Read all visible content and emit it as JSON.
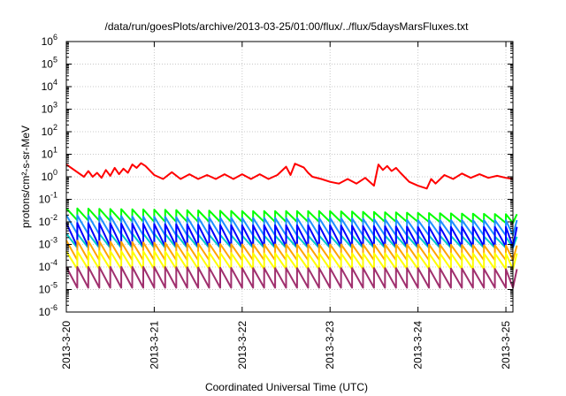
{
  "chart_data": {
    "type": "line",
    "title": "/data/run/goesPlots/archive/2013-03-25/01:00/flux/../flux/5daysMarsFluxes.txt",
    "xlabel": "Coordinated Universal Time (UTC)",
    "ylabel": "protons/cm²-s-sr-MeV",
    "yscale": "log",
    "ylim": [
      1e-06,
      1000000.0
    ],
    "xlim": [
      0,
      5.08
    ],
    "grid": true,
    "x_tick_labels": [
      "2013-3-20",
      "2013-3-21",
      "2013-3-22",
      "2013-3-23",
      "2013-3-24",
      "2013-3-25"
    ],
    "x_tick_positions_days": [
      0,
      1,
      2,
      3,
      4,
      5
    ],
    "y_tick_labels": [
      {
        "base": "10",
        "exp": "-6"
      },
      {
        "base": "10",
        "exp": "-5"
      },
      {
        "base": "10",
        "exp": "-4"
      },
      {
        "base": "10",
        "exp": "-3"
      },
      {
        "base": "10",
        "exp": "-2"
      },
      {
        "base": "10",
        "exp": "-1"
      },
      {
        "base": "10",
        "exp": "0"
      },
      {
        "base": "10",
        "exp": "1"
      },
      {
        "base": "10",
        "exp": "2"
      },
      {
        "base": "10",
        "exp": "3"
      },
      {
        "base": "10",
        "exp": "4"
      },
      {
        "base": "10",
        "exp": "5"
      },
      {
        "base": "10",
        "exp": "6"
      }
    ],
    "series": [
      {
        "color": "#ff0000",
        "kind": "top",
        "start": 3.5,
        "x": [
          0.0,
          0.2,
          0.25,
          0.3,
          0.35,
          0.4,
          0.45,
          0.5,
          0.55,
          0.6,
          0.65,
          0.7,
          0.75,
          0.8,
          0.85,
          0.9,
          1.0,
          1.1,
          1.2,
          1.3,
          1.4,
          1.5,
          1.6,
          1.7,
          1.8,
          1.9,
          2.0,
          2.1,
          2.2,
          2.3,
          2.4,
          2.5,
          2.55,
          2.6,
          2.7,
          2.75,
          2.8,
          2.9,
          3.0,
          3.1,
          3.2,
          3.3,
          3.4,
          3.5,
          3.55,
          3.6,
          3.65,
          3.7,
          3.75,
          3.8,
          3.9,
          4.0,
          4.1,
          4.15,
          4.2,
          4.3,
          4.4,
          4.5,
          4.6,
          4.7,
          4.8,
          4.9,
          5.0,
          5.08
        ],
        "values": [
          3.5,
          1.0,
          1.8,
          1.0,
          1.5,
          0.9,
          2.0,
          1.1,
          2.5,
          1.3,
          2.3,
          1.5,
          3.5,
          2.5,
          4.0,
          3.0,
          1.2,
          0.8,
          1.6,
          0.8,
          1.3,
          0.8,
          1.2,
          0.8,
          1.3,
          0.8,
          1.3,
          0.8,
          1.3,
          0.8,
          1.2,
          2.8,
          1.2,
          3.8,
          2.6,
          1.5,
          1.0,
          0.8,
          0.6,
          0.5,
          0.8,
          0.5,
          0.9,
          0.4,
          3.5,
          2.0,
          3.0,
          1.8,
          2.5,
          1.5,
          0.6,
          0.4,
          0.3,
          0.8,
          0.5,
          1.2,
          0.8,
          1.4,
          0.9,
          1.3,
          0.9,
          1.1,
          0.9,
          0.8
        ]
      },
      {
        "color": "#00ff00",
        "kind": "saw",
        "start": 0.04,
        "peak": [
          0.04,
          0.035,
          0.03,
          0.03,
          0.025,
          0.022
        ],
        "trough": [
          0.012,
          0.01,
          0.01,
          0.01,
          0.01,
          0.009
        ]
      },
      {
        "color": "#1e90ff",
        "kind": "saw",
        "start": 0.02,
        "peak": [
          0.02,
          0.017,
          0.015,
          0.015,
          0.012,
          0.012
        ],
        "trough": [
          0.003,
          0.0025,
          0.0025,
          0.0025,
          0.0025,
          0.0025
        ]
      },
      {
        "color": "#00c8c8",
        "kind": "saw",
        "start": 0.003,
        "peak": [
          0.003,
          0.003,
          0.0025,
          0.0025,
          0.0025,
          0.0022
        ],
        "trough": [
          0.0007,
          0.0007,
          0.0007,
          0.0007,
          0.0007,
          0.0007
        ]
      },
      {
        "color": "#0000ff",
        "kind": "saw",
        "start": 0.009,
        "peak": [
          0.009,
          0.008,
          0.007,
          0.007,
          0.006,
          0.006
        ],
        "trough": [
          0.0008,
          0.0008,
          0.0008,
          0.0008,
          0.0008,
          0.0008
        ]
      },
      {
        "color": "#ffa500",
        "kind": "saw",
        "start": 0.0015,
        "peak": [
          0.0015,
          0.0012,
          0.001,
          0.001,
          0.001,
          0.0009
        ],
        "trough": [
          0.0002,
          0.0002,
          0.0002,
          0.0002,
          0.0002,
          0.0002
        ]
      },
      {
        "color": "#ffff00",
        "kind": "saw",
        "start": 0.0005,
        "peak": [
          0.0005,
          0.0005,
          0.0004,
          0.0004,
          0.0004,
          0.0004
        ],
        "trough": [
          8e-05,
          8e-05,
          8e-05,
          8e-05,
          8e-05,
          8e-05
        ]
      },
      {
        "color": "#a0306e",
        "kind": "saw",
        "start": 0.0001,
        "peak": [
          0.0001,
          0.0001,
          9e-05,
          9e-05,
          9e-05,
          8e-05
        ],
        "trough": [
          1.2e-05,
          1.2e-05,
          1.2e-05,
          1.2e-05,
          1.2e-05,
          1.2e-05
        ]
      }
    ]
  }
}
